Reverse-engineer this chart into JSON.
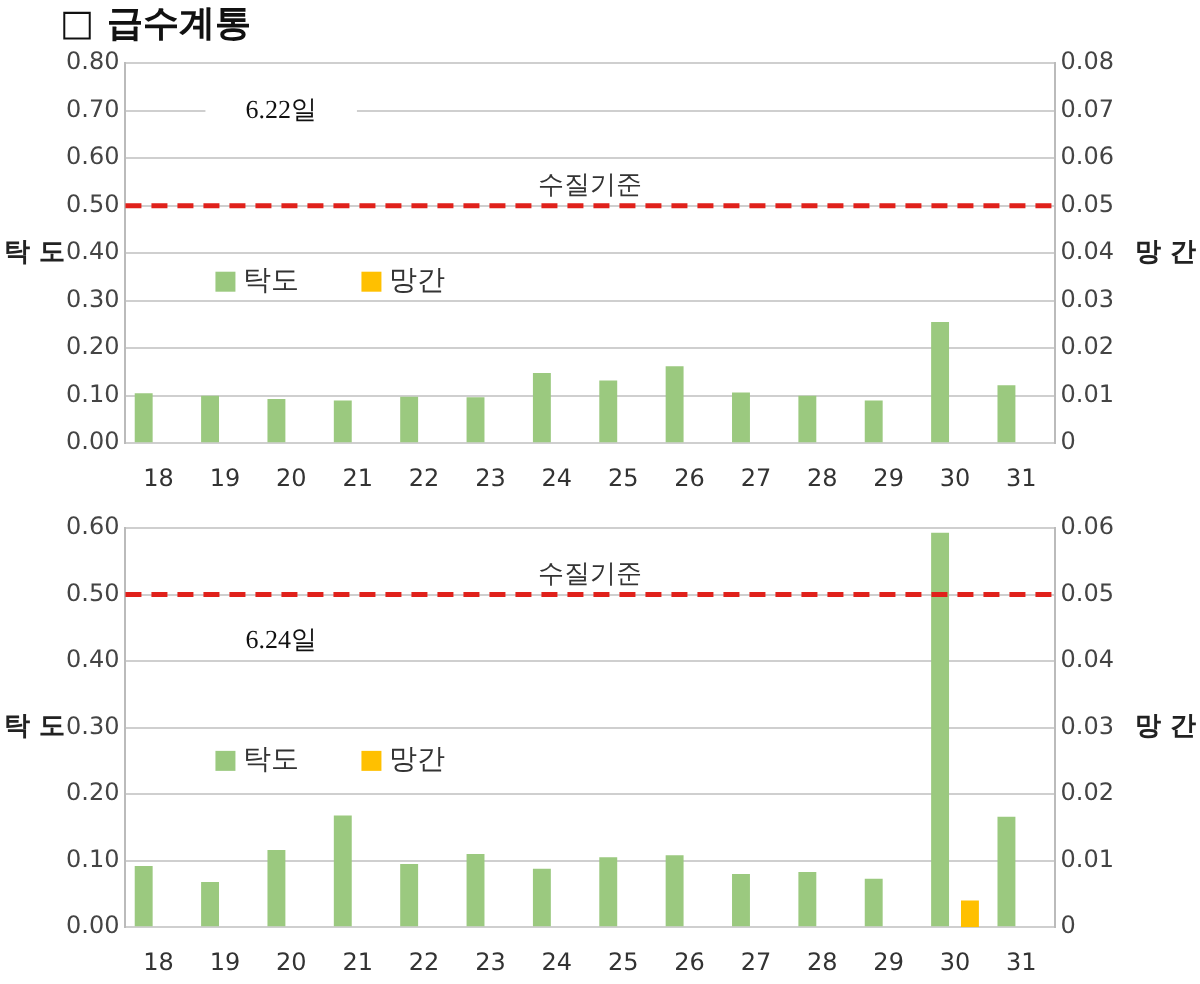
{
  "chart_data": [
    {
      "type": "bar",
      "title": "□ 급수계통",
      "ylabel": "탁 도",
      "y2label": "망 간",
      "categories": [
        "18",
        "19",
        "20",
        "21",
        "22",
        "23",
        "24",
        "25",
        "26",
        "27",
        "28",
        "29",
        "30",
        "31"
      ],
      "series": [
        {
          "name": "탁도",
          "color": "#9bc97f",
          "values": [
            0.105,
            0.1,
            0.093,
            0.09,
            0.098,
            0.097,
            0.148,
            0.132,
            0.162,
            0.107,
            0.1,
            0.09,
            0.255,
            0.122
          ]
        },
        {
          "name": "망간",
          "color": "#ffc000",
          "axis": "y2",
          "values": [
            0,
            0,
            0,
            0,
            0,
            0,
            0,
            0,
            0,
            0,
            0,
            0,
            0,
            0
          ]
        }
      ],
      "ylim": [
        0,
        0.8
      ],
      "yticks": [
        {
          "value": 0,
          "label": "0.00"
        },
        {
          "value": 0.1,
          "label": "0.10"
        },
        {
          "value": 0.2,
          "label": "0.20"
        },
        {
          "value": 0.3,
          "label": "0.30"
        },
        {
          "value": 0.4,
          "label": "0.40"
        },
        {
          "value": 0.5,
          "label": "0.50"
        },
        {
          "value": 0.6,
          "label": "0.60"
        },
        {
          "value": 0.7,
          "label": "0.70"
        },
        {
          "value": 0.8,
          "label": "0.80"
        }
      ],
      "y2lim": [
        0,
        0.08
      ],
      "y2ticks": [
        0,
        0.01,
        0.02,
        0.03,
        0.04,
        0.05,
        0.06,
        0.07,
        0.08
      ],
      "ref_lines": [
        {
          "axis": "y",
          "value": 0.5,
          "label": "수질기준",
          "color": "#e0211b",
          "line_style": "dashed"
        }
      ],
      "annotations": [
        "6.22일"
      ],
      "grid": "y",
      "legend": "left"
    },
    {
      "type": "bar",
      "ylabel": "탁 도",
      "y2label": "망 간",
      "categories": [
        "18",
        "19",
        "20",
        "21",
        "22",
        "23",
        "24",
        "25",
        "26",
        "27",
        "28",
        "29",
        "30",
        "31"
      ],
      "series": [
        {
          "name": "탁도",
          "color": "#9bc97f",
          "values": [
            0.092,
            0.068,
            0.116,
            0.168,
            0.095,
            0.11,
            0.088,
            0.105,
            0.108,
            0.08,
            0.083,
            0.073,
            0.593,
            0.166
          ]
        },
        {
          "name": "망간",
          "color": "#ffc000",
          "axis": "y2",
          "values": [
            0,
            0,
            0,
            0,
            0,
            0,
            0,
            0,
            0,
            0,
            0,
            0,
            0.004,
            0
          ]
        }
      ],
      "ylim": [
        0,
        0.6
      ],
      "yticks": [
        {
          "value": 0,
          "label": "0.00"
        },
        {
          "value": 0.1,
          "label": "0.10"
        },
        {
          "value": 0.2,
          "label": "0.20"
        },
        {
          "value": 0.3,
          "label": "0.30"
        },
        {
          "value": 0.4,
          "label": "0.40"
        },
        {
          "value": 0.5,
          "label": "0.50"
        },
        {
          "value": 0.6,
          "label": "0.60"
        }
      ],
      "y2lim": [
        0,
        0.06
      ],
      "y2ticks": [
        0,
        0.01,
        0.02,
        0.03,
        0.04,
        0.05,
        0.06
      ],
      "ref_lines": [
        {
          "axis": "y",
          "value": 0.5,
          "label": "수질기준",
          "color": "#e0211b",
          "line_style": "dashed"
        }
      ],
      "annotations": [
        "6.24일"
      ],
      "grid": "y",
      "legend": "left"
    }
  ]
}
